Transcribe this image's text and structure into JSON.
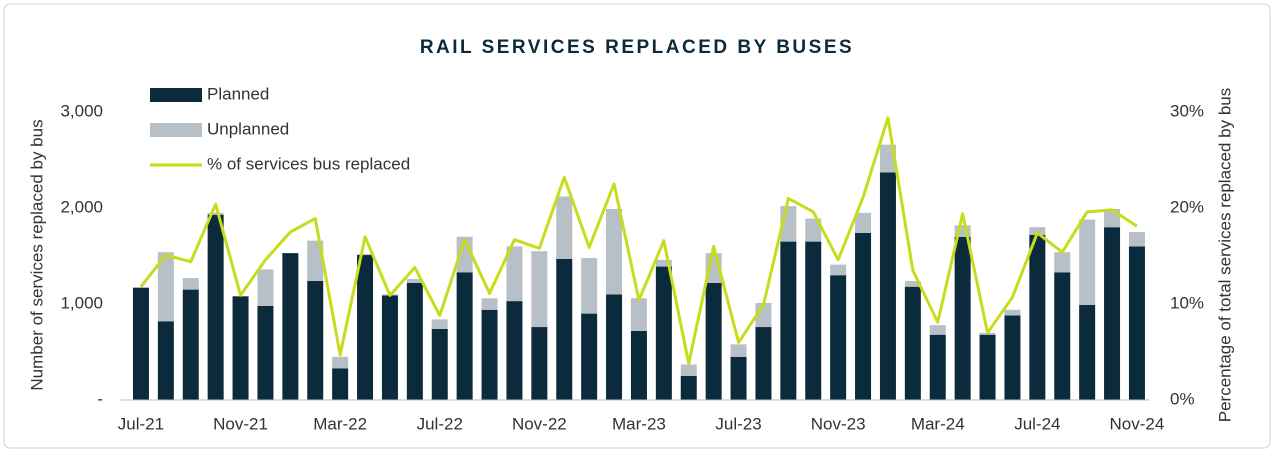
{
  "chart_data": {
    "type": "bar",
    "title": "RAIL SERVICES REPLACED BY BUSES",
    "ylabel": "Number of services replaced by bus",
    "y2label": "Percentage of total services replaced by bus",
    "categories": [
      "Jul-21",
      null,
      null,
      null,
      "Nov-21",
      null,
      null,
      null,
      "Mar-22",
      null,
      null,
      null,
      "Jul-22",
      null,
      null,
      null,
      "Nov-22",
      null,
      null,
      null,
      "Mar-23",
      null,
      null,
      null,
      "Jul-23",
      null,
      null,
      null,
      "Nov-23",
      null,
      null,
      null,
      "Mar-24",
      null,
      null,
      null,
      "Jul-24",
      null,
      null,
      null,
      "Nov-24"
    ],
    "series": [
      {
        "name": "Planned",
        "type": "bar",
        "color": "#0b2a3c",
        "values": [
          1170,
          820,
          1150,
          1930,
          1080,
          980,
          1530,
          1240,
          330,
          1510,
          1090,
          1220,
          740,
          1330,
          940,
          1030,
          760,
          1470,
          900,
          1100,
          720,
          1390,
          250,
          1220,
          450,
          760,
          1650,
          1650,
          1300,
          1740,
          2370,
          1180,
          680,
          1700,
          680,
          880,
          1720,
          1330,
          990,
          1800,
          1600
        ]
      },
      {
        "name": "Unplanned",
        "type": "bar",
        "color": "#b7c0c7",
        "values": [
          0,
          720,
          120,
          20,
          0,
          380,
          0,
          420,
          120,
          10,
          10,
          40,
          100,
          370,
          120,
          570,
          790,
          650,
          580,
          890,
          340,
          70,
          120,
          310,
          130,
          250,
          370,
          240,
          110,
          210,
          290,
          60,
          100,
          120,
          20,
          60,
          80,
          210,
          890,
          190,
          150
        ]
      },
      {
        "name": "% of services bus replaced",
        "type": "line",
        "axis": "y2",
        "color": "#c8dc1e",
        "values": [
          11.8,
          15.1,
          14.4,
          20.4,
          10.9,
          14.6,
          17.5,
          18.9,
          4.7,
          17,
          10.9,
          13.8,
          8.8,
          16.7,
          11.1,
          16.7,
          15.8,
          23.2,
          15.9,
          22.5,
          10.4,
          16.6,
          3.8,
          16,
          6,
          9.9,
          21,
          19.6,
          14.6,
          21.1,
          29.4,
          13.5,
          8.1,
          19.4,
          7,
          10.7,
          17.4,
          15.4,
          19.6,
          19.8,
          18.1
        ]
      }
    ],
    "ylim": [
      0,
      3000
    ],
    "yticks": [
      {
        "value": 0,
        "label": "-"
      },
      {
        "value": 1000,
        "label": "1,000"
      },
      {
        "value": 2000,
        "label": "2,000"
      },
      {
        "value": 3000,
        "label": "3,000"
      }
    ],
    "y2lim": [
      0,
      30
    ],
    "y2ticks": [
      {
        "value": 0,
        "label": "0%"
      },
      {
        "value": 10,
        "label": "10%"
      },
      {
        "value": 20,
        "label": "20%"
      },
      {
        "value": 30,
        "label": "30%"
      }
    ],
    "stacked": true,
    "grid": false,
    "legend": "upper left"
  }
}
